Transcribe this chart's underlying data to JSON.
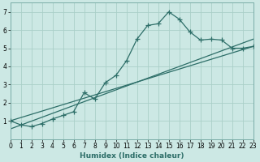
{
  "xlabel": "Humidex (Indice chaleur)",
  "bg_color": "#cce8e4",
  "line_color": "#2d6e68",
  "xlim": [
    0,
    23
  ],
  "ylim": [
    0.0,
    7.5
  ],
  "yticks": [
    1,
    2,
    3,
    4,
    5,
    6,
    7
  ],
  "xticks": [
    0,
    1,
    2,
    3,
    4,
    5,
    6,
    7,
    8,
    9,
    10,
    11,
    12,
    13,
    14,
    15,
    16,
    17,
    18,
    19,
    20,
    21,
    22,
    23
  ],
  "curve_x": [
    0,
    1,
    2,
    3,
    4,
    5,
    6,
    7,
    8,
    9,
    10,
    11,
    12,
    13,
    14,
    15,
    16,
    17,
    18,
    19,
    20,
    21,
    22,
    23
  ],
  "curve_y": [
    1.0,
    0.78,
    0.68,
    0.85,
    1.1,
    1.3,
    1.5,
    2.55,
    2.2,
    3.1,
    3.5,
    4.3,
    5.5,
    6.25,
    6.35,
    7.0,
    6.6,
    5.9,
    5.45,
    5.5,
    5.45,
    5.0,
    5.0,
    5.1
  ],
  "line1_x": [
    0,
    23
  ],
  "line1_y": [
    1.0,
    5.1
  ],
  "line2_x": [
    0,
    23
  ],
  "line2_y": [
    0.55,
    5.5
  ],
  "grid_color": "#aacfc8",
  "marker": "+",
  "markersize": 4,
  "linewidth": 0.9,
  "tick_fontsize": 5.5,
  "xlabel_fontsize": 6.5
}
